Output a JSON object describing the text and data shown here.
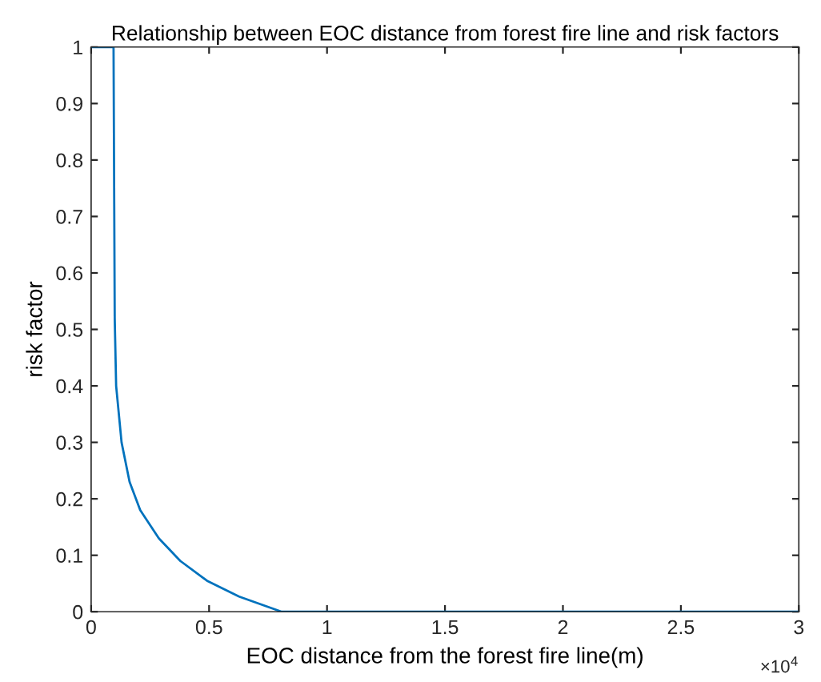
{
  "chart_data": {
    "type": "line",
    "title": "Relationship between EOC distance from forest fire line and risk factors",
    "xlabel": "EOC distance from the forest fire line(m)",
    "ylabel": "risk factor",
    "annotations": [
      "×10$^{4}$"
    ],
    "series": [
      {
        "color": "#0072bd",
        "x": [
          0,
          0.095,
          0.1,
          0.106,
          0.129,
          0.163,
          0.208,
          0.287,
          0.378,
          0.491,
          0.627,
          0.808,
          3
        ],
        "values": [
          1,
          1,
          0.52,
          0.4,
          0.3,
          0.23,
          0.18,
          0.13,
          0.09,
          0.055,
          0.027,
          0,
          0
        ]
      }
    ],
    "xlim": [
      0,
      3
    ],
    "ylim": [
      0,
      1
    ],
    "xticks": [
      0,
      0.5,
      1,
      1.5,
      2,
      2.5,
      3
    ],
    "yticks": [
      0,
      0.1,
      0.2,
      0.3,
      0.4,
      0.5,
      0.6,
      0.7,
      0.8,
      0.9,
      1
    ],
    "grid": false,
    "legend": false,
    "marker": "none",
    "line_style": "solid"
  }
}
